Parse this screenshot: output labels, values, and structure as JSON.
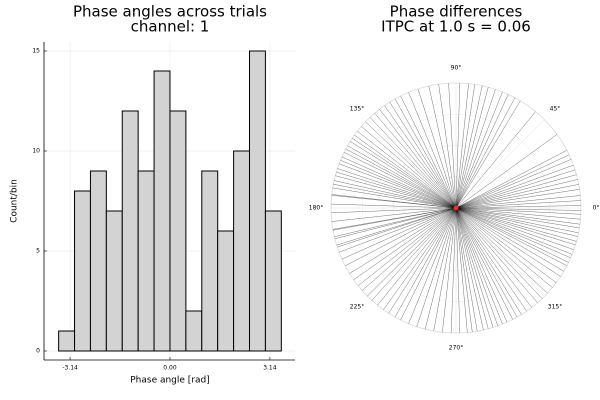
{
  "chart_data": [
    {
      "type": "histogram",
      "title": "Phase angles across trials",
      "subtitle": "channel: 1",
      "xlabel": "Phase angle [rad]",
      "ylabel": "Count/bin",
      "bins": [
        -3.5,
        -3.0,
        -2.5,
        -2.0,
        -1.5,
        -1.0,
        -0.5,
        0,
        0.5,
        1.0,
        1.5,
        2.0,
        2.5,
        3.0,
        3.5
      ],
      "values": [
        1,
        8,
        9,
        7,
        12,
        9,
        14,
        12,
        2,
        9,
        6,
        10,
        15,
        7
      ],
      "color": "#d3d3d3",
      "xlim": [
        -3.96,
        3.93
      ],
      "xticks": [
        -3.14,
        {
          "value": 0,
          "label": "0.00"
        },
        3.14
      ],
      "ylim": [
        -0.45,
        15.45
      ],
      "yticks": [
        0,
        5,
        10,
        15
      ],
      "grid": true
    },
    {
      "type": "polar",
      "title": "Phase differences",
      "subtitle": "ITPC at 1.0 s = 0.06",
      "color": "#000000",
      "angles": [
        -3.25,
        -2.97,
        -2.91,
        -2.84,
        -2.78,
        -2.72,
        -2.66,
        -2.59,
        -2.53,
        -2.47,
        -2.42,
        -2.36,
        -2.31,
        -2.25,
        -2.19,
        -2.14,
        -2.08,
        -2.03,
        -1.96,
        -1.89,
        -1.82,
        -1.75,
        -1.68,
        -1.61,
        -1.54,
        -1.48,
        -1.44,
        -1.4,
        -1.35,
        -1.31,
        -1.27,
        -1.23,
        -1.19,
        -1.15,
        -1.1,
        -1.06,
        -1.02,
        -0.97,
        -0.92,
        -0.86,
        -0.81,
        -0.75,
        -0.69,
        -0.64,
        -0.58,
        -0.53,
        -0.48,
        -0.45,
        -0.41,
        -0.38,
        -0.34,
        -0.3,
        -0.27,
        -0.23,
        -0.2,
        -0.16,
        -0.13,
        -0.09,
        -0.05,
        -0.02,
        0.02,
        0.06,
        0.1,
        0.15,
        0.19,
        0.23,
        0.27,
        0.31,
        0.35,
        0.4,
        0.44,
        0.48,
        0.63,
        0.88,
        1.03,
        1.08,
        1.14,
        1.19,
        1.25,
        1.31,
        1.36,
        1.42,
        1.47,
        1.54,
        1.63,
        1.71,
        1.79,
        1.88,
        1.96,
        2.03,
        2.08,
        2.13,
        2.18,
        2.23,
        2.28,
        2.33,
        2.38,
        2.43,
        2.48,
        2.52,
        2.55,
        2.58,
        2.62,
        2.65,
        2.68,
        2.72,
        2.75,
        2.78,
        2.82,
        2.85,
        2.88,
        2.92,
        2.95,
        2.98,
        3.04,
        3.11,
        3.18,
        3.25,
        3.32,
        3.39,
        3.46
      ],
      "angle_ticks": [
        {
          "value": 0,
          "label": "0°"
        },
        {
          "value": 45,
          "label": "45°"
        },
        {
          "value": 90,
          "label": "90°"
        },
        {
          "value": 135,
          "label": "135°"
        },
        {
          "value": 180,
          "label": "180°"
        },
        {
          "value": 225,
          "label": "225°"
        },
        {
          "value": 270,
          "label": "270°"
        },
        {
          "value": 315,
          "label": "315°"
        }
      ],
      "grid": true
    }
  ]
}
